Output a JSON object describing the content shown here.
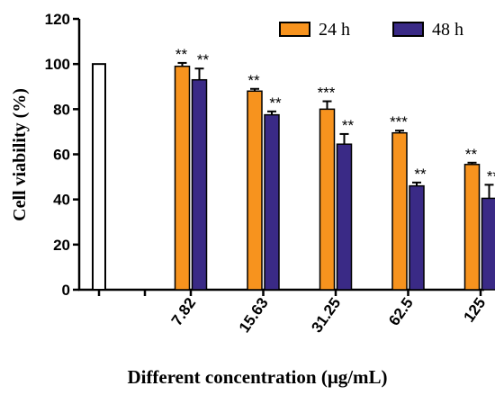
{
  "chart_data": {
    "type": "bar",
    "xlabel": "Different concentration (μg/mL)",
    "ylabel": "Cell viability (%)",
    "ylim": [
      0,
      120
    ],
    "yticks": [
      0,
      20,
      40,
      60,
      80,
      100,
      120
    ],
    "legend_position": "top-right",
    "control": {
      "value": 100,
      "color": "#ffffff"
    },
    "categories": [
      "7.82",
      "15.63",
      "31.25",
      "62.5",
      "125"
    ],
    "series": [
      {
        "name": "24 h",
        "color": "#f7931e",
        "values": [
          99,
          88,
          80,
          69.5,
          55.5
        ],
        "errors": [
          1.5,
          1,
          3.5,
          1,
          0.8
        ],
        "significance": [
          "**",
          "**",
          "***",
          "***",
          "**"
        ]
      },
      {
        "name": "48 h",
        "color": "#3a2a86",
        "values": [
          93,
          77.5,
          64.5,
          46,
          40.5
        ],
        "errors": [
          5,
          1.5,
          4.5,
          1.5,
          6
        ],
        "significance": [
          "**",
          "**",
          "**",
          "**",
          "**"
        ]
      }
    ]
  }
}
